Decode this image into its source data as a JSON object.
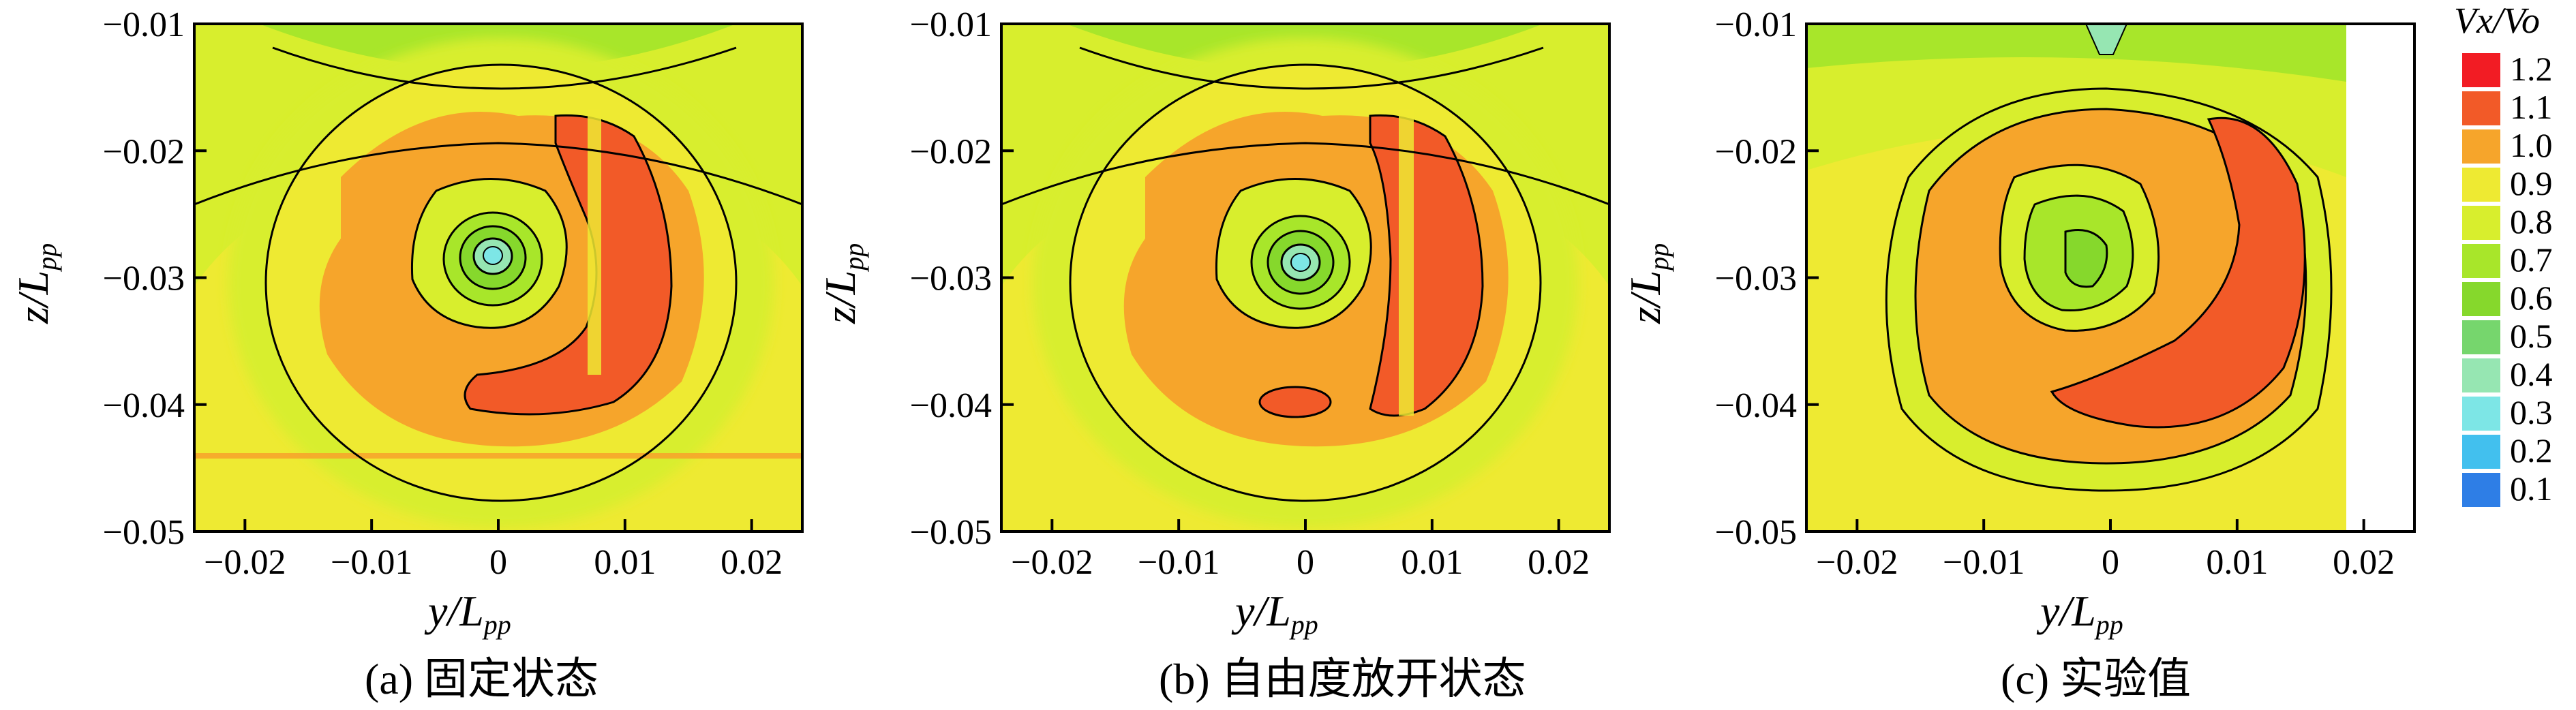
{
  "colorbar": {
    "title": "Vx/Vo",
    "levels": [
      "1.2",
      "1.1",
      "1.0",
      "0.9",
      "0.8",
      "0.7",
      "0.6",
      "0.5",
      "0.4",
      "0.3",
      "0.2",
      "0.1"
    ],
    "colors": [
      "#f21c24",
      "#f25a28",
      "#f6a52b",
      "#eeea32",
      "#d8ee2d",
      "#a8e62a",
      "#86d82c",
      "#76d66d",
      "#96e6b2",
      "#7de6e6",
      "#42c0ee",
      "#2e7ee6"
    ]
  },
  "chart_data": [
    {
      "type": "heatmap",
      "panel": "a",
      "caption": "(a) 固定状态",
      "xlabel": "y/L",
      "xlabel_sub": "pp",
      "ylabel": "z/L",
      "ylabel_sub": "pp",
      "xlim": [
        -0.024,
        0.024
      ],
      "ylim": [
        -0.05,
        -0.01
      ],
      "xticks": [
        "−0.02",
        "−0.01",
        "0",
        "0.01",
        "0.02"
      ],
      "xtick_values": [
        -0.02,
        -0.01,
        0,
        0.01,
        0.02
      ],
      "yticks": [
        "−0.01",
        "−0.02",
        "−0.03",
        "−0.04",
        "−0.05"
      ],
      "ytick_values": [
        -0.01,
        -0.02,
        -0.03,
        -0.04,
        -0.05
      ],
      "vortex_center": [
        -0.0005,
        -0.0285
      ],
      "high_region_center": [
        0.0085,
        -0.03
      ]
    },
    {
      "type": "heatmap",
      "panel": "b",
      "caption": "(b) 自由度放开状态",
      "xlabel": "y/L",
      "xlabel_sub": "pp",
      "ylabel": "z/L",
      "ylabel_sub": "pp",
      "xlim": [
        -0.024,
        0.024
      ],
      "ylim": [
        -0.05,
        -0.01
      ],
      "xticks": [
        "−0.02",
        "−0.01",
        "0",
        "0.01",
        "0.02"
      ],
      "xtick_values": [
        -0.02,
        -0.01,
        0,
        0.01,
        0.02
      ],
      "yticks": [
        "−0.01",
        "−0.02",
        "−0.03",
        "−0.04",
        "−0.05"
      ],
      "ytick_values": [
        -0.01,
        -0.02,
        -0.03,
        -0.04,
        -0.05
      ],
      "vortex_center": [
        -0.0005,
        -0.029
      ],
      "high_region_center": [
        0.009,
        -0.03
      ]
    },
    {
      "type": "heatmap",
      "panel": "c",
      "caption": "(c) 实验值",
      "xlabel": "y/L",
      "xlabel_sub": "pp",
      "ylabel": "z/L",
      "ylabel_sub": "pp",
      "xlim": [
        -0.024,
        0.024
      ],
      "ylim": [
        -0.05,
        -0.01
      ],
      "xticks": [
        "−0.02",
        "−0.01",
        "0",
        "0.01",
        "0.02"
      ],
      "xtick_values": [
        -0.02,
        -0.01,
        0,
        0.01,
        0.02
      ],
      "yticks": [
        "−0.01",
        "−0.02",
        "−0.03",
        "−0.04",
        "−0.05"
      ],
      "ytick_values": [
        -0.01,
        -0.02,
        -0.03,
        -0.04,
        -0.05
      ],
      "vortex_center": [
        -0.0005,
        -0.028
      ],
      "high_region_center": [
        0.009,
        -0.031
      ],
      "data_extent_y": [
        -0.024,
        0.019
      ]
    }
  ]
}
